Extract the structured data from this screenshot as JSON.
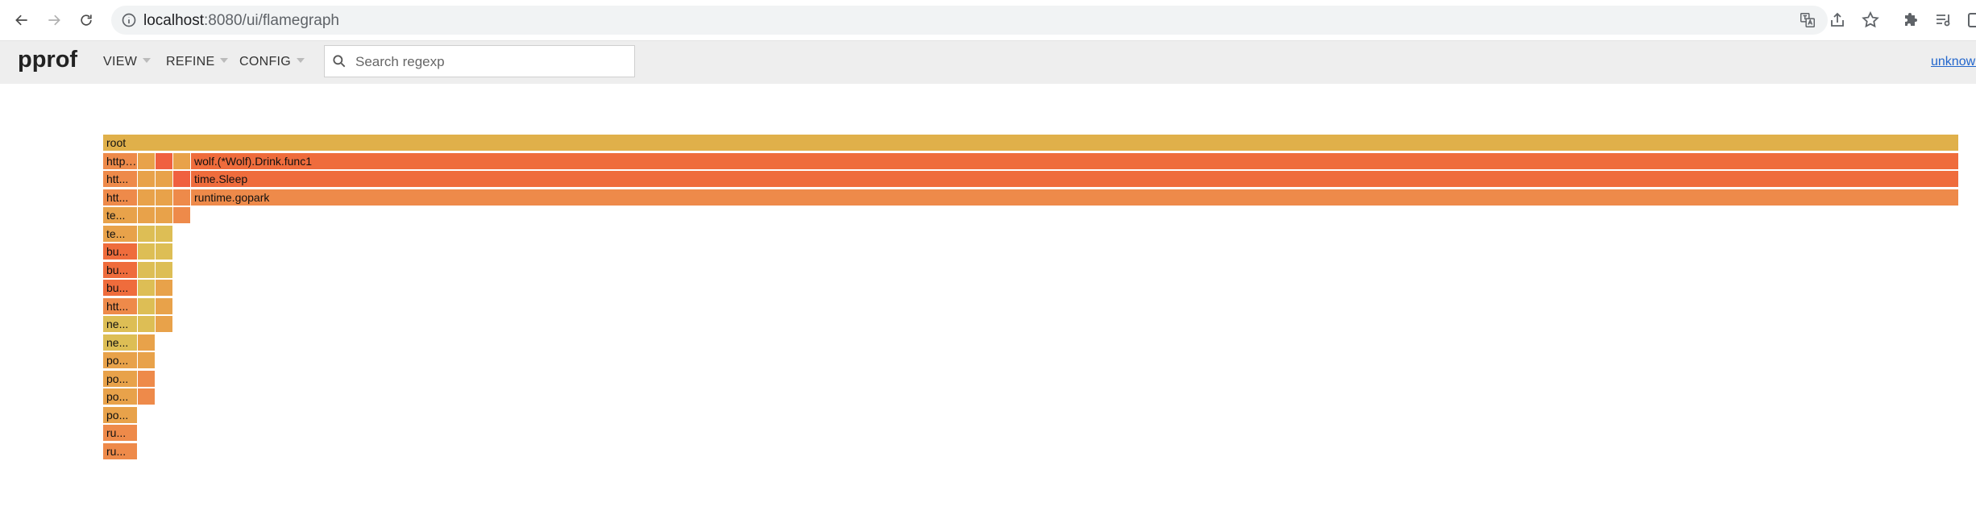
{
  "browser": {
    "url_host": "localhost",
    "url_rest": ":8080/ui/flamegraph"
  },
  "header": {
    "title": "pprof",
    "menus": [
      "VIEW",
      "REFINE",
      "CONFIG"
    ],
    "search_placeholder": "Search regexp",
    "user_link": "unknown"
  },
  "colors": {
    "root": "#e0b04a",
    "dark": "#ef6c3c",
    "orange": "#ee8a4a",
    "amber": "#e8a24a",
    "yellow": "#ddbe55",
    "red": "#f06040"
  },
  "flamegraph": {
    "root": {
      "label": "root",
      "color": "root"
    },
    "levels": [
      [
        {
          "label": "http.(...",
          "color": "orange"
        },
        {
          "label": "",
          "color": "amber"
        },
        {
          "label": "",
          "color": "red"
        },
        {
          "label": "",
          "color": "amber"
        },
        {
          "label": "wolf.(*Wolf).Drink.func1",
          "color": "dark"
        }
      ],
      [
        {
          "label": "htt...",
          "color": "orange"
        },
        {
          "label": "",
          "color": "amber"
        },
        {
          "label": "",
          "color": "amber"
        },
        {
          "label": "",
          "color": "red"
        },
        {
          "label": "time.Sleep",
          "color": "dark"
        }
      ],
      [
        {
          "label": "htt...",
          "color": "orange"
        },
        {
          "label": "",
          "color": "amber"
        },
        {
          "label": "",
          "color": "amber"
        },
        {
          "label": "",
          "color": "orange"
        },
        {
          "label": "runtime.gopark",
          "color": "orange"
        }
      ],
      [
        {
          "label": "te...",
          "color": "amber"
        },
        {
          "label": "",
          "color": "amber"
        },
        {
          "label": "",
          "color": "amber"
        },
        {
          "label": "",
          "color": "orange"
        }
      ],
      [
        {
          "label": "te...",
          "color": "amber"
        },
        {
          "label": "",
          "color": "yellow"
        },
        {
          "label": "",
          "color": "yellow"
        }
      ],
      [
        {
          "label": "bu...",
          "color": "dark"
        },
        {
          "label": "",
          "color": "yellow"
        },
        {
          "label": "",
          "color": "yellow"
        }
      ],
      [
        {
          "label": "bu...",
          "color": "dark"
        },
        {
          "label": "",
          "color": "yellow"
        },
        {
          "label": "",
          "color": "yellow"
        }
      ],
      [
        {
          "label": "bu...",
          "color": "dark"
        },
        {
          "label": "",
          "color": "yellow"
        },
        {
          "label": "",
          "color": "amber"
        }
      ],
      [
        {
          "label": "htt...",
          "color": "orange"
        },
        {
          "label": "",
          "color": "yellow"
        },
        {
          "label": "",
          "color": "amber"
        }
      ],
      [
        {
          "label": "ne...",
          "color": "yellow"
        },
        {
          "label": "",
          "color": "yellow"
        },
        {
          "label": "",
          "color": "amber"
        }
      ],
      [
        {
          "label": "ne...",
          "color": "yellow"
        },
        {
          "label": "",
          "color": "amber"
        }
      ],
      [
        {
          "label": "po...",
          "color": "amber"
        },
        {
          "label": "",
          "color": "amber"
        }
      ],
      [
        {
          "label": "po...",
          "color": "amber"
        },
        {
          "label": "",
          "color": "orange"
        }
      ],
      [
        {
          "label": "po...",
          "color": "amber"
        },
        {
          "label": "",
          "color": "orange"
        }
      ],
      [
        {
          "label": "po...",
          "color": "amber"
        }
      ],
      [
        {
          "label": "ru...",
          "color": "orange"
        }
      ],
      [
        {
          "label": "ru...",
          "color": "orange"
        }
      ]
    ]
  }
}
